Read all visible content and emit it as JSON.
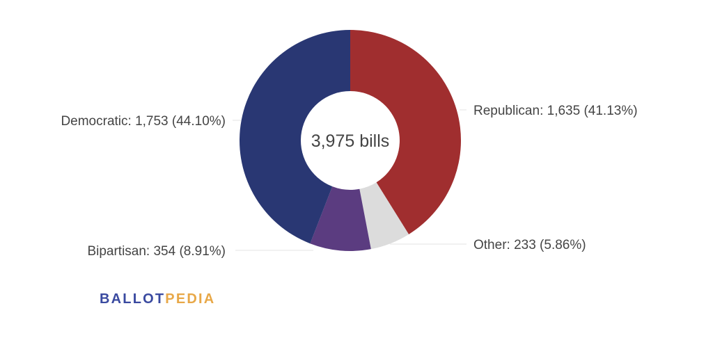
{
  "chart_data": {
    "type": "pie",
    "variant": "donut",
    "title": "",
    "center_label": "3,975 bills",
    "total": 3975,
    "slices": [
      {
        "name": "Republican",
        "value": 1635,
        "percent": 41.13,
        "label": "Republican: 1,635 (41.13%)",
        "color": "#a02e2f"
      },
      {
        "name": "Other",
        "value": 233,
        "percent": 5.86,
        "label": "Other: 233 (5.86%)",
        "color": "#dcdcdc"
      },
      {
        "name": "Bipartisan",
        "value": 354,
        "percent": 8.91,
        "label": "Bipartisan: 354 (8.91%)",
        "color": "#5b3c80"
      },
      {
        "name": "Democratic",
        "value": 1753,
        "percent": 44.1,
        "label": "Democratic: 1,753 (44.10%)",
        "color": "#293773"
      }
    ]
  },
  "logo": {
    "part1": "BALLOT",
    "part2": "PEDIA"
  }
}
